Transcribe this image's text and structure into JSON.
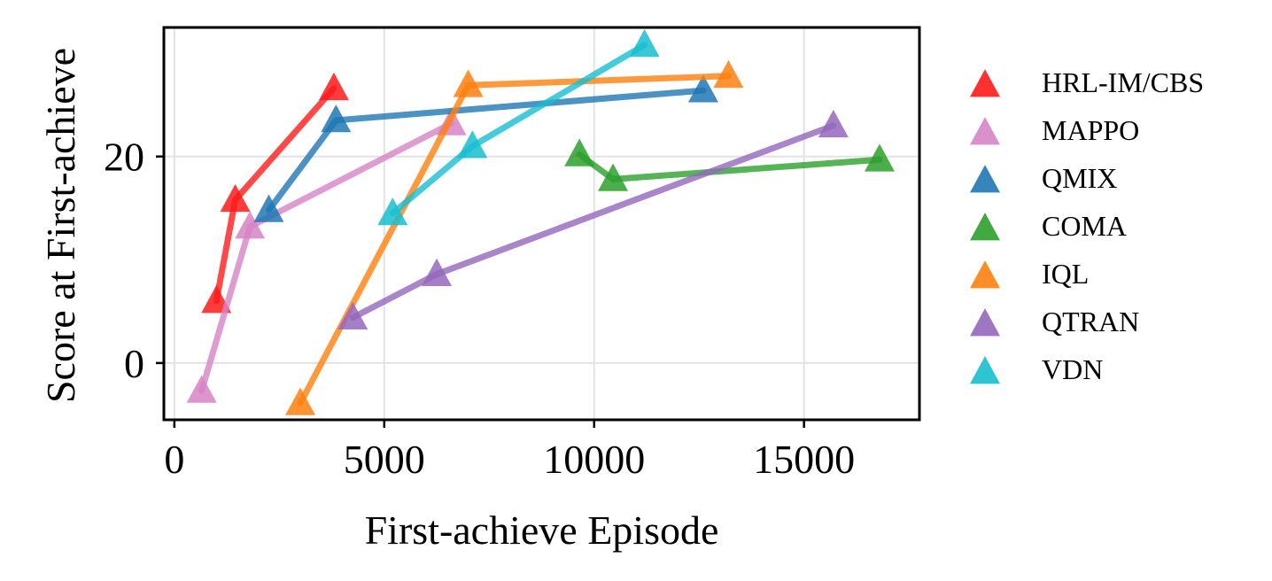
{
  "chart_data": {
    "type": "line",
    "title": "",
    "xlabel": "First-achieve Episode",
    "ylabel": "Score at First-achieve",
    "xlim": [
      -250,
      17750
    ],
    "ylim": [
      -5.5,
      32.5
    ],
    "xticks": [
      0,
      5000,
      10000,
      15000
    ],
    "xtick_labels": [
      "0",
      "5000",
      "10000",
      "15000"
    ],
    "yticks": [
      0,
      20
    ],
    "ytick_labels": [
      "0",
      "20"
    ],
    "grid": true,
    "legend_position": "outside-right",
    "marker": "triangle",
    "series": [
      {
        "name": "HRL-IM/CBS",
        "color": "#ff1a1a",
        "points": [
          [
            1000,
            6
          ],
          [
            1450,
            15.8
          ],
          [
            3800,
            26.6
          ]
        ]
      },
      {
        "name": "MAPPO",
        "color": "#d684c4",
        "points": [
          [
            650,
            -2.7
          ],
          [
            1800,
            13.2
          ],
          [
            6600,
            23.2
          ]
        ]
      },
      {
        "name": "QMIX",
        "color": "#1f77b4",
        "points": [
          [
            2250,
            14.8
          ],
          [
            3850,
            23.5
          ],
          [
            12600,
            26.4
          ]
        ]
      },
      {
        "name": "COMA",
        "color": "#2ca02c",
        "points": [
          [
            9650,
            20.2
          ],
          [
            10450,
            17.8
          ],
          [
            16800,
            19.7
          ]
        ]
      },
      {
        "name": "IQL",
        "color": "#ff7f0e",
        "points": [
          [
            3000,
            -3.9
          ],
          [
            7000,
            26.9
          ],
          [
            13200,
            27.8
          ]
        ]
      },
      {
        "name": "QTRAN",
        "color": "#9467bd",
        "points": [
          [
            4250,
            4.4
          ],
          [
            6250,
            8.6
          ],
          [
            15700,
            23
          ]
        ]
      },
      {
        "name": "VDN",
        "color": "#17becf",
        "points": [
          [
            5200,
            14.5
          ],
          [
            7100,
            21
          ],
          [
            11200,
            30.8
          ]
        ]
      }
    ]
  }
}
